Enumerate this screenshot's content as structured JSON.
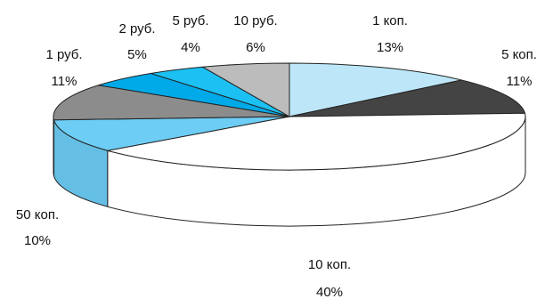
{
  "chart_data": {
    "type": "pie",
    "style": "3d",
    "start_angle_deg": 0,
    "direction": "clockwise",
    "slices": [
      {
        "label": "1 коп.",
        "value": 13,
        "percent": "13%",
        "color": "#bde7f8"
      },
      {
        "label": "5 коп.",
        "value": 11,
        "percent": "11%",
        "color": "#444444"
      },
      {
        "label": "10 коп.",
        "value": 40,
        "percent": "40%",
        "color": "#ffffff"
      },
      {
        "label": "50 коп.",
        "value": 10,
        "percent": "10%",
        "color": "#6dcdf5"
      },
      {
        "label": "1 руб.",
        "value": 11,
        "percent": "11%",
        "color": "#8c8c8c"
      },
      {
        "label": "2 руб.",
        "value": 5,
        "percent": "5%",
        "color": "#00a9e8"
      },
      {
        "label": "5 руб.",
        "value": 4,
        "percent": "4%",
        "color": "#1cc0f2"
      },
      {
        "label": "10 руб.",
        "value": 6,
        "percent": "6%",
        "color": "#bcbcbc"
      }
    ],
    "legend": "none"
  }
}
